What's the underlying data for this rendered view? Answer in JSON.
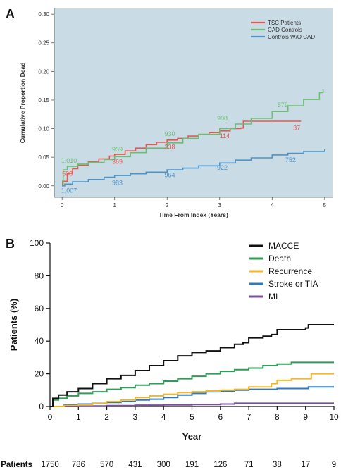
{
  "chart_data": [
    {
      "panel": "A",
      "type": "line",
      "xlabel": "Time From Index (Years)",
      "ylabel": "Cumulative Proportion Dead",
      "xlim": [
        -0.15,
        5.15
      ],
      "ylim": [
        -0.02,
        0.31
      ],
      "x_ticks": [
        "0",
        "1",
        "2",
        "3",
        "4",
        "5"
      ],
      "y_ticks": [
        "0.00",
        "0.05",
        "0.10",
        "0.15",
        "0.20",
        "0.25",
        "0.30"
      ],
      "background": "#c9dce6",
      "legend_position": "top-right",
      "series": [
        {
          "name": "TSC Patients",
          "color": "#e8574e",
          "x": [
            0,
            0.01,
            0.1,
            0.2,
            0.3,
            0.5,
            0.7,
            0.9,
            1.0,
            1.2,
            1.4,
            1.6,
            1.8,
            2.0,
            2.2,
            2.4,
            2.6,
            2.8,
            3.0,
            3.2,
            3.4,
            3.45,
            3.7,
            4.0,
            4.3,
            4.55
          ],
          "y": [
            0.0,
            0.008,
            0.022,
            0.03,
            0.036,
            0.042,
            0.047,
            0.052,
            0.055,
            0.061,
            0.066,
            0.072,
            0.076,
            0.08,
            0.083,
            0.087,
            0.09,
            0.093,
            0.096,
            0.1,
            0.101,
            0.113,
            0.113,
            0.113,
            0.113,
            0.113
          ]
        },
        {
          "name": "CAD Controls",
          "color": "#6cbf72",
          "x": [
            0,
            0.02,
            0.1,
            0.3,
            0.5,
            0.8,
            1.0,
            1.3,
            1.6,
            2.0,
            2.3,
            2.6,
            3.0,
            3.3,
            3.6,
            4.0,
            4.3,
            4.6,
            4.9,
            4.97
          ],
          "y": [
            0.0,
            0.028,
            0.034,
            0.038,
            0.041,
            0.046,
            0.051,
            0.058,
            0.066,
            0.075,
            0.083,
            0.09,
            0.1,
            0.108,
            0.118,
            0.13,
            0.14,
            0.151,
            0.163,
            0.168
          ]
        },
        {
          "name": "Controls W/O CAD",
          "color": "#4e94c9",
          "x": [
            0,
            0.05,
            0.2,
            0.5,
            0.8,
            1.0,
            1.3,
            1.6,
            2.0,
            2.3,
            2.6,
            3.0,
            3.3,
            3.6,
            4.0,
            4.3,
            4.6,
            5.0
          ],
          "y": [
            0.0,
            0.003,
            0.007,
            0.011,
            0.015,
            0.018,
            0.021,
            0.024,
            0.028,
            0.031,
            0.035,
            0.04,
            0.045,
            0.049,
            0.054,
            0.057,
            0.06,
            0.064
          ]
        }
      ],
      "annotations": [
        {
          "text": "508",
          "x": 0.0,
          "y": 0.021,
          "series": 0
        },
        {
          "text": "369",
          "x": 0.95,
          "y": 0.042,
          "series": 0
        },
        {
          "text": "238",
          "x": 1.95,
          "y": 0.068,
          "series": 0
        },
        {
          "text": "114",
          "x": 3.0,
          "y": 0.087,
          "series": 0
        },
        {
          "text": "37",
          "x": 4.4,
          "y": 0.101,
          "series": 0
        },
        {
          "text": "1,010",
          "x": -0.02,
          "y": 0.044,
          "series": 1
        },
        {
          "text": "959",
          "x": 0.95,
          "y": 0.064,
          "series": 1
        },
        {
          "text": "930",
          "x": 1.95,
          "y": 0.091,
          "series": 1
        },
        {
          "text": "908",
          "x": 2.95,
          "y": 0.118,
          "series": 1
        },
        {
          "text": "879",
          "x": 4.1,
          "y": 0.141,
          "series": 1
        },
        {
          "text": "1,007",
          "x": -0.02,
          "y": -0.008,
          "series": 2
        },
        {
          "text": "983",
          "x": 0.95,
          "y": 0.005,
          "series": 2
        },
        {
          "text": "964",
          "x": 1.95,
          "y": 0.019,
          "series": 2
        },
        {
          "text": "922",
          "x": 2.95,
          "y": 0.032,
          "series": 2
        },
        {
          "text": "752",
          "x": 4.25,
          "y": 0.045,
          "series": 2
        }
      ]
    },
    {
      "panel": "B",
      "type": "line",
      "xlabel": "Year",
      "ylabel": "Patients (%)",
      "xlim": [
        0,
        10
      ],
      "ylim": [
        0,
        100
      ],
      "x_ticks": [
        "0",
        "1",
        "2",
        "3",
        "4",
        "5",
        "6",
        "7",
        "8",
        "9",
        "10"
      ],
      "y_ticks": [
        "0",
        "20",
        "40",
        "60",
        "80",
        "100"
      ],
      "legend_position": "top-right",
      "series": [
        {
          "name": "MACCE",
          "color": "#111111",
          "x": [
            0,
            0.1,
            0.3,
            0.6,
            1.0,
            1.5,
            2.0,
            2.5,
            3.0,
            3.5,
            4.0,
            4.5,
            5.0,
            5.5,
            6.0,
            6.5,
            6.8,
            7.0,
            7.5,
            7.8,
            8.0,
            8.3,
            8.6,
            9.0,
            9.1,
            9.5,
            10.0
          ],
          "y": [
            0,
            5,
            7,
            9,
            11,
            14,
            17,
            19,
            22,
            25,
            28,
            31,
            33,
            34,
            36,
            38,
            39,
            42,
            43,
            44,
            47,
            47,
            47,
            48,
            50,
            50,
            50
          ]
        },
        {
          "name": "Death",
          "color": "#2e9e56",
          "x": [
            0,
            0.1,
            0.3,
            0.6,
            1.0,
            1.5,
            2.0,
            2.5,
            3.0,
            3.5,
            4.0,
            4.5,
            5.0,
            5.5,
            6.0,
            6.5,
            7.0,
            7.5,
            8.0,
            8.5,
            9.0,
            9.5,
            10.0
          ],
          "y": [
            0,
            4,
            5,
            6.5,
            8,
            9,
            10.5,
            11.5,
            13,
            14,
            15.5,
            17,
            18.5,
            20,
            21.5,
            22.5,
            23.5,
            25,
            26,
            27,
            27,
            27,
            27
          ]
        },
        {
          "name": "Recurrence",
          "color": "#f2b62b",
          "x": [
            0,
            0.5,
            1.0,
            1.5,
            2.0,
            2.5,
            3.0,
            3.5,
            4.0,
            4.5,
            5.0,
            5.5,
            6.0,
            6.5,
            6.9,
            7.0,
            7.6,
            7.8,
            8.0,
            8.5,
            9.0,
            9.2,
            10.0
          ],
          "y": [
            0,
            0.5,
            1,
            2,
            3,
            4,
            5.5,
            6.5,
            7.5,
            8.5,
            9,
            9.5,
            10,
            10.5,
            10.5,
            12,
            12,
            14,
            16,
            17,
            17,
            20,
            20
          ]
        },
        {
          "name": "Stroke or TIA",
          "color": "#2f7bbf",
          "x": [
            0,
            0.5,
            1.0,
            1.5,
            2.0,
            2.5,
            3.0,
            3.5,
            4.0,
            4.5,
            5.0,
            5.5,
            6.0,
            6.5,
            7.0,
            7.5,
            8.0,
            8.5,
            9.0,
            9.1,
            10.0
          ],
          "y": [
            0,
            1,
            1.5,
            2,
            2.5,
            3,
            4,
            4.5,
            5.5,
            7,
            8,
            9,
            9.5,
            10,
            10.5,
            10.5,
            11,
            11,
            11,
            12,
            12
          ]
        },
        {
          "name": "MI",
          "color": "#7a4fa0",
          "x": [
            0,
            1.0,
            2.0,
            3.0,
            4.0,
            5.0,
            6.0,
            6.5,
            7.0,
            8.0,
            9.0,
            10.0
          ],
          "y": [
            0,
            0.3,
            0.5,
            0.8,
            1,
            1.2,
            1.5,
            2,
            2,
            2,
            2,
            2
          ]
        }
      ],
      "risk_table": {
        "label": "Patients",
        "values": [
          "1750",
          "786",
          "570",
          "431",
          "300",
          "191",
          "126",
          "71",
          "38",
          "17",
          "9"
        ]
      }
    }
  ],
  "panel_letters": [
    "A",
    "B"
  ]
}
